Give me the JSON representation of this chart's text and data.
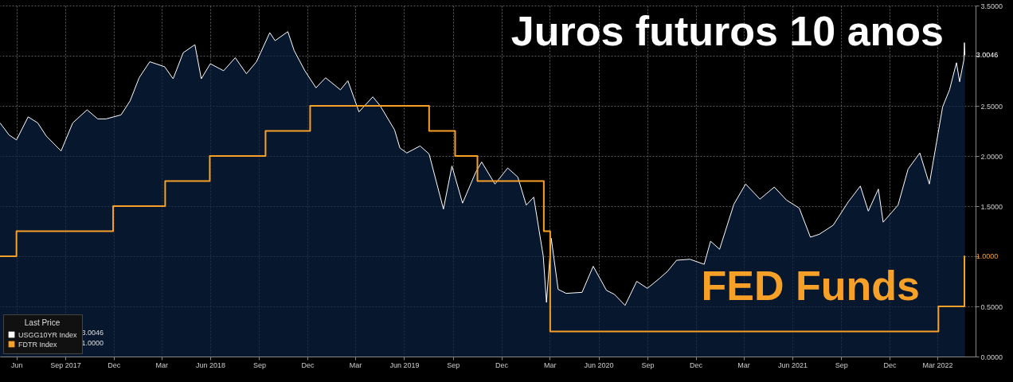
{
  "chart_data": {
    "type": "area",
    "annotations": [
      "Juros futuros 10 anos",
      "FED Funds"
    ],
    "legend_title": "Last Price",
    "legend": "bottom left",
    "grid": true,
    "xlim": [
      "2017-05-15",
      "2022-05-26"
    ],
    "xticks": [
      {
        "value": "2017-06-15",
        "label": "Jun"
      },
      {
        "value": "2017-09-15",
        "label": "Sep\n2017"
      },
      {
        "value": "2017-12-15",
        "label": "Dec"
      },
      {
        "value": "2018-03-15",
        "label": "Mar"
      },
      {
        "value": "2018-06-15",
        "label": "Jun\n2018"
      },
      {
        "value": "2018-09-15",
        "label": "Sep"
      },
      {
        "value": "2018-12-15",
        "label": "Dec"
      },
      {
        "value": "2019-03-15",
        "label": "Mar"
      },
      {
        "value": "2019-06-15",
        "label": "Jun\n2019"
      },
      {
        "value": "2019-09-15",
        "label": "Sep"
      },
      {
        "value": "2019-12-15",
        "label": "Dec"
      },
      {
        "value": "2020-03-15",
        "label": "Mar"
      },
      {
        "value": "2020-06-15",
        "label": "Jun\n2020"
      },
      {
        "value": "2020-09-15",
        "label": "Sep"
      },
      {
        "value": "2020-12-15",
        "label": "Dec"
      },
      {
        "value": "2021-03-15",
        "label": "Mar"
      },
      {
        "value": "2021-06-15",
        "label": "Jun\n2021"
      },
      {
        "value": "2021-09-15",
        "label": "Sep"
      },
      {
        "value": "2021-12-15",
        "label": "Dec"
      },
      {
        "value": "2022-03-15",
        "label": "Mar\n2022"
      }
    ],
    "ylim": [
      0,
      3.5
    ],
    "yticks": [
      {
        "value": 0,
        "label": "0.0000"
      },
      {
        "value": 0.5,
        "label": "0.5000"
      },
      {
        "value": 1,
        "label": null
      },
      {
        "value": 1.5,
        "label": "1.5000"
      },
      {
        "value": 2,
        "label": "2.0000"
      },
      {
        "value": 2.5,
        "label": "2.5000"
      },
      {
        "value": 3,
        "label": null
      },
      {
        "value": 3.5,
        "label": "3.5000"
      }
    ],
    "series": [
      {
        "name": "USGG10YR Index",
        "color": "#ffffff",
        "x": [
          "2017-05-15",
          "2017-06-01",
          "2017-06-15",
          "2017-07-07",
          "2017-07-25",
          "2017-08-10",
          "2017-09-07",
          "2017-09-29",
          "2017-10-26",
          "2017-11-15",
          "2017-12-01",
          "2017-12-29",
          "2018-01-15",
          "2018-02-01",
          "2018-02-21",
          "2018-03-21",
          "2018-04-06",
          "2018-04-25",
          "2018-05-17",
          "2018-05-29",
          "2018-06-15",
          "2018-07-10",
          "2018-08-01",
          "2018-08-22",
          "2018-09-10",
          "2018-10-05",
          "2018-10-15",
          "2018-11-08",
          "2018-11-20",
          "2018-12-10",
          "2018-12-31",
          "2019-01-18",
          "2019-02-15",
          "2019-03-01",
          "2019-03-22",
          "2019-04-17",
          "2019-05-01",
          "2019-05-28",
          "2019-06-07",
          "2019-06-20",
          "2019-07-15",
          "2019-08-01",
          "2019-08-28",
          "2019-09-13",
          "2019-10-03",
          "2019-10-28",
          "2019-11-08",
          "2019-12-03",
          "2019-12-27",
          "2020-01-15",
          "2020-01-31",
          "2020-02-14",
          "2020-03-03",
          "2020-03-09",
          "2020-03-18",
          "2020-03-31",
          "2020-04-15",
          "2020-05-15",
          "2020-06-05",
          "2020-06-30",
          "2020-07-15",
          "2020-08-04",
          "2020-08-26",
          "2020-09-15",
          "2020-10-08",
          "2020-10-23",
          "2020-11-09",
          "2020-12-04",
          "2020-12-31",
          "2021-01-12",
          "2021-01-29",
          "2021-02-25",
          "2021-03-19",
          "2021-04-15",
          "2021-05-12",
          "2021-06-04",
          "2021-06-28",
          "2021-07-19",
          "2021-08-05",
          "2021-08-31",
          "2021-09-28",
          "2021-10-21",
          "2021-11-05",
          "2021-11-24",
          "2021-12-03",
          "2021-12-31",
          "2022-01-19",
          "2022-02-10",
          "2022-02-28",
          "2022-03-25",
          "2022-04-07",
          "2022-04-20",
          "2022-04-26",
          "2022-05-04",
          "2022-05-05",
          "2022-05-06"
        ],
        "values": [
          2.33,
          2.21,
          2.16,
          2.39,
          2.33,
          2.2,
          2.05,
          2.33,
          2.46,
          2.37,
          2.37,
          2.41,
          2.55,
          2.78,
          2.94,
          2.89,
          2.77,
          3.03,
          3.11,
          2.77,
          2.92,
          2.85,
          2.98,
          2.82,
          2.94,
          3.23,
          3.15,
          3.24,
          3.05,
          2.85,
          2.68,
          2.78,
          2.66,
          2.75,
          2.44,
          2.59,
          2.5,
          2.26,
          2.08,
          2.03,
          2.1,
          2.02,
          1.47,
          1.9,
          1.53,
          1.84,
          1.94,
          1.72,
          1.88,
          1.79,
          1.51,
          1.59,
          1.0,
          0.54,
          1.18,
          0.67,
          0.63,
          0.64,
          0.9,
          0.66,
          0.62,
          0.51,
          0.75,
          0.68,
          0.78,
          0.85,
          0.96,
          0.97,
          0.92,
          1.15,
          1.07,
          1.52,
          1.72,
          1.57,
          1.69,
          1.56,
          1.48,
          1.19,
          1.22,
          1.31,
          1.54,
          1.7,
          1.45,
          1.67,
          1.34,
          1.51,
          1.87,
          2.03,
          1.72,
          2.49,
          2.66,
          2.93,
          2.74,
          2.96,
          3.13,
          3.0046
        ],
        "value_labels": [
          null,
          null,
          null,
          null,
          null,
          null,
          null,
          null,
          null,
          null,
          null,
          null,
          null,
          null,
          null,
          null,
          null,
          null,
          null,
          null,
          null,
          null,
          null,
          null,
          null,
          null,
          null,
          null,
          null,
          null,
          null,
          null,
          null,
          null,
          null,
          null,
          null,
          null,
          null,
          null,
          null,
          null,
          null,
          null,
          null,
          null,
          null,
          null,
          null,
          null,
          null,
          null,
          null,
          null,
          null,
          null,
          null,
          null,
          null,
          null,
          null,
          null,
          null,
          null,
          null,
          null,
          null,
          null,
          null,
          null,
          null,
          null,
          null,
          null,
          null,
          null,
          null,
          null,
          null,
          null,
          null,
          null,
          null,
          null,
          null,
          null,
          null,
          null,
          null,
          null,
          null,
          null,
          null,
          null,
          null,
          "3.0046"
        ]
      },
      {
        "name": "FDTR Index",
        "type": "step",
        "color": "#f7a028",
        "x": [
          "2017-05-15",
          "2017-06-15",
          "2017-12-14",
          "2018-03-22",
          "2018-06-14",
          "2018-09-27",
          "2018-12-20",
          "2019-08-01",
          "2019-09-19",
          "2019-10-31",
          "2020-03-04",
          "2020-03-16",
          "2022-03-17",
          "2022-05-05",
          "2022-05-06"
        ],
        "values": [
          1.0,
          1.25,
          1.5,
          1.75,
          2.0,
          2.25,
          2.5,
          2.25,
          2.0,
          1.75,
          1.25,
          0.25,
          0.5,
          1.0,
          1.0
        ],
        "value_labels": [
          null,
          null,
          null,
          null,
          null,
          null,
          null,
          null,
          null,
          null,
          null,
          null,
          null,
          null,
          "1.0000"
        ]
      }
    ]
  }
}
